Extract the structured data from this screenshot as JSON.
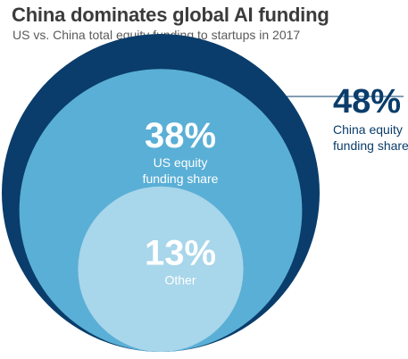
{
  "chart_data": {
    "type": "nested-circle",
    "title": "China dominates global AI funding",
    "subtitle": "US vs. China total equity funding to startups in 2017",
    "series": [
      {
        "value": 48,
        "value_label": "48%",
        "label_lines": [
          "China equity",
          "funding share"
        ],
        "color": "#0a3d6b",
        "label_color": "#0a3d6b",
        "label_placement": "outside-right"
      },
      {
        "value": 38,
        "value_label": "38%",
        "label_lines": [
          "US equity",
          "funding share"
        ],
        "color": "#5aafd6",
        "label_color": "#ffffff",
        "label_placement": "inside"
      },
      {
        "value": 13,
        "value_label": "13%",
        "label_lines": [
          "Other"
        ],
        "color": "#a8d6ea",
        "label_color": "#ffffff",
        "label_placement": "inside"
      }
    ]
  }
}
